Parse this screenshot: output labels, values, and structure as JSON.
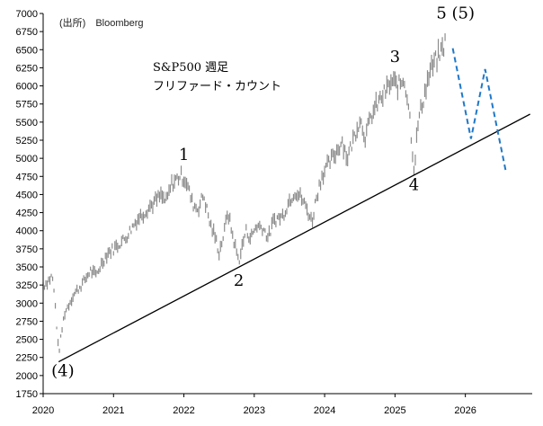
{
  "source_label": "(出所)　Bloomberg",
  "title_line1": "S&P500 週足",
  "title_line2": "フリファード・カウント",
  "chart_data": {
    "type": "line",
    "title": "S&P500 週足",
    "subtitle": "フリファード・カウント",
    "xlabel": "",
    "ylabel": "",
    "x_ticks": [
      "2020",
      "2021",
      "2022",
      "2023",
      "2024",
      "2025",
      "2026"
    ],
    "y_ticks": [
      1750,
      2000,
      2250,
      2500,
      2750,
      3000,
      3250,
      3500,
      3750,
      4000,
      4250,
      4500,
      4750,
      5000,
      5250,
      5500,
      5750,
      6000,
      6250,
      6500,
      6750,
      7000
    ],
    "xlim": [
      2020.0,
      2026.95
    ],
    "ylim": [
      1750,
      7000
    ],
    "grid": false,
    "series": [
      {
        "name": "",
        "style": "bar-range",
        "color": "#8c8c8c",
        "keypoints": [
          [
            2020.0,
            3240
          ],
          [
            2020.08,
            3320
          ],
          [
            2020.13,
            3380
          ],
          [
            2020.17,
            3000
          ],
          [
            2020.22,
            2300
          ],
          [
            2020.3,
            2850
          ],
          [
            2020.42,
            3100
          ],
          [
            2020.5,
            3200
          ],
          [
            2020.58,
            3300
          ],
          [
            2020.67,
            3450
          ],
          [
            2020.75,
            3380
          ],
          [
            2020.83,
            3550
          ],
          [
            2020.92,
            3700
          ],
          [
            2021.0,
            3750
          ],
          [
            2021.17,
            3900
          ],
          [
            2021.33,
            4150
          ],
          [
            2021.5,
            4320
          ],
          [
            2021.67,
            4480
          ],
          [
            2021.75,
            4400
          ],
          [
            2021.83,
            4650
          ],
          [
            2021.95,
            4766
          ],
          [
            2022.03,
            4700
          ],
          [
            2022.12,
            4380
          ],
          [
            2022.2,
            4300
          ],
          [
            2022.28,
            4500
          ],
          [
            2022.37,
            4100
          ],
          [
            2022.45,
            3900
          ],
          [
            2022.5,
            3700
          ],
          [
            2022.58,
            4000
          ],
          [
            2022.62,
            4280
          ],
          [
            2022.7,
            3900
          ],
          [
            2022.78,
            3580
          ],
          [
            2022.88,
            4000
          ],
          [
            2022.95,
            3900
          ],
          [
            2023.03,
            4070
          ],
          [
            2023.12,
            4050
          ],
          [
            2023.2,
            3900
          ],
          [
            2023.28,
            4150
          ],
          [
            2023.4,
            4200
          ],
          [
            2023.5,
            4420
          ],
          [
            2023.58,
            4550
          ],
          [
            2023.67,
            4450
          ],
          [
            2023.75,
            4300
          ],
          [
            2023.82,
            4120
          ],
          [
            2023.88,
            4450
          ],
          [
            2023.96,
            4770
          ],
          [
            2024.08,
            4950
          ],
          [
            2024.17,
            5100
          ],
          [
            2024.25,
            5250
          ],
          [
            2024.32,
            5000
          ],
          [
            2024.42,
            5300
          ],
          [
            2024.5,
            5550
          ],
          [
            2024.58,
            5300
          ],
          [
            2024.67,
            5600
          ],
          [
            2024.75,
            5750
          ],
          [
            2024.85,
            5900
          ],
          [
            2024.95,
            6050
          ],
          [
            2025.05,
            6000
          ],
          [
            2025.13,
            6100
          ],
          [
            2025.2,
            5700
          ],
          [
            2025.27,
            4850
          ],
          [
            2025.33,
            5500
          ],
          [
            2025.42,
            5900
          ],
          [
            2025.5,
            6200
          ],
          [
            2025.58,
            6350
          ],
          [
            2025.67,
            6500
          ],
          [
            2025.73,
            6650
          ]
        ]
      },
      {
        "name": "",
        "style": "dashed",
        "color": "#1f78c8",
        "points": [
          [
            2025.82,
            6520
          ],
          [
            2026.08,
            5270
          ],
          [
            2026.28,
            6230
          ],
          [
            2026.58,
            4800
          ]
        ]
      },
      {
        "name": "",
        "style": "solid",
        "color": "#000000",
        "points": [
          [
            2020.22,
            2190
          ],
          [
            2026.92,
            5610
          ]
        ]
      }
    ],
    "annotations": [
      {
        "text": "1",
        "x": 2022.0,
        "y": 4980
      },
      {
        "text": "2",
        "x": 2022.78,
        "y": 3240
      },
      {
        "text": "3",
        "x": 2025.0,
        "y": 6330
      },
      {
        "text": "4",
        "x": 2025.27,
        "y": 4560
      },
      {
        "text": "5 (5)",
        "x": 2025.86,
        "y": 6930
      },
      {
        "text": "(4)",
        "x": 2020.28,
        "y": 1990
      }
    ]
  }
}
